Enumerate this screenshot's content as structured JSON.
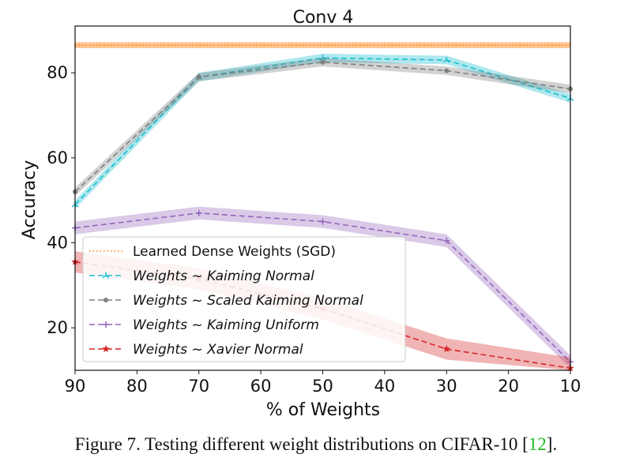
{
  "chart_data": {
    "type": "line",
    "title": "Conv 4",
    "xlabel": "% of Weights",
    "ylabel": "Accuracy",
    "x_reversed": true,
    "xlim": [
      90,
      10
    ],
    "ylim": [
      10,
      91
    ],
    "xticks": [
      90,
      80,
      70,
      60,
      50,
      40,
      30,
      20,
      10
    ],
    "yticks": [
      20,
      40,
      60,
      80
    ],
    "x": [
      90,
      70,
      50,
      30,
      10
    ],
    "grid": false,
    "legend_position": "lower-left",
    "baseline": {
      "name": "Learned Dense Weights (SGD)",
      "value": 86.5,
      "band": [
        85.8,
        87.2
      ],
      "color": "#ff7f0e"
    },
    "series": [
      {
        "name": "Weights ~ Kaiming Normal",
        "values": [
          49.0,
          79.0,
          83.5,
          83.0,
          74.0
        ],
        "band": 1.0,
        "color": "#17becf",
        "marker": "tri"
      },
      {
        "name": "Weights ~ Scaled Kaiming Normal",
        "values": [
          52.0,
          79.0,
          82.5,
          80.5,
          76.2
        ],
        "band": 1.0,
        "color": "#7f7f7f",
        "marker": "dot"
      },
      {
        "name": "Weights ~ Kaiming Uniform",
        "values": [
          43.5,
          47.0,
          45.0,
          40.5,
          12.0
        ],
        "band": 1.5,
        "color": "#9467bd",
        "marker": "plus"
      },
      {
        "name": "Weights ~ Xavier Normal",
        "values": [
          35.5,
          31.5,
          24.5,
          15.0,
          10.5
        ],
        "band": 2.5,
        "color": "#d62728",
        "marker": "star"
      }
    ]
  },
  "caption": {
    "prefix": "Figure 7. Testing different weight distributions on CIFAR-10 [",
    "ref": "12",
    "suffix": "]."
  }
}
